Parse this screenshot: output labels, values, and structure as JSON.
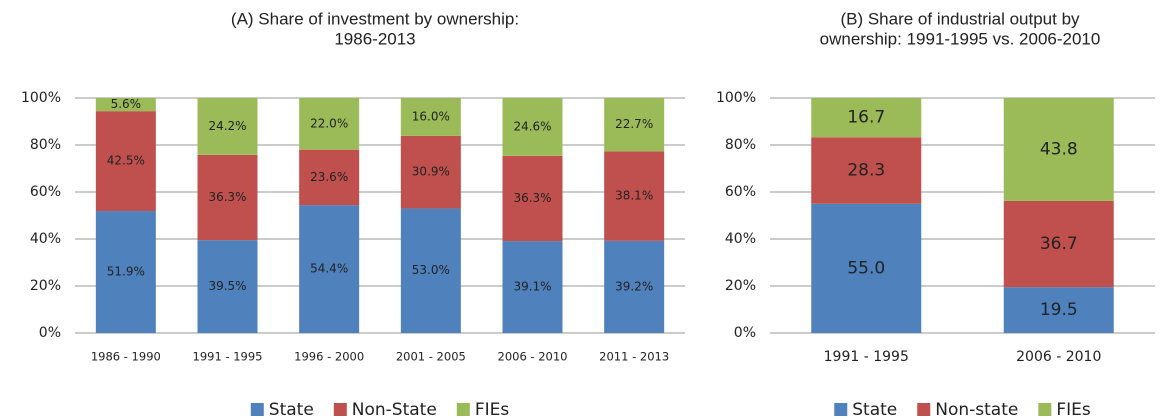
{
  "chart_data": [
    {
      "type": "bar",
      "stacked": true,
      "title": [
        "(A) Share of investment by ownership:",
        "1986-2013"
      ],
      "categories": [
        "1986 - 1990",
        "1991 - 1995",
        "1996 - 2000",
        "2001 - 2005",
        "2006 - 2010",
        "2011 - 2013"
      ],
      "series": [
        {
          "name": "State",
          "color": "#4f81bd",
          "values": [
            51.9,
            39.5,
            54.4,
            53.0,
            39.1,
            39.2
          ],
          "value_labels": [
            "51.9%",
            "39.5%",
            "54.4%",
            "53.0%",
            "39.1%",
            "39.2%"
          ]
        },
        {
          "name": "Non-State",
          "color": "#c0504d",
          "values": [
            42.5,
            36.3,
            23.6,
            30.9,
            36.3,
            38.1
          ],
          "value_labels": [
            "42.5%",
            "36.3%",
            "23.6%",
            "30.9%",
            "36.3%",
            "38.1%"
          ]
        },
        {
          "name": "FIEs",
          "color": "#9bbb59",
          "values": [
            5.6,
            24.2,
            22.0,
            16.0,
            24.6,
            22.7
          ],
          "value_labels": [
            "5.6%",
            "24.2%",
            "22.0%",
            "16.0%",
            "24.6%",
            "22.7%"
          ]
        }
      ],
      "ylim": [
        0,
        100
      ],
      "yticks": [
        {
          "value": 0,
          "label": "0%"
        },
        {
          "value": 20,
          "label": "20%"
        },
        {
          "value": 40,
          "label": "40%"
        },
        {
          "value": 60,
          "label": "60%"
        },
        {
          "value": 80,
          "label": "80%"
        },
        {
          "value": 100,
          "label": "100%"
        }
      ],
      "grid": true,
      "legend": "bottom"
    },
    {
      "type": "bar",
      "stacked": true,
      "title": [
        "(B) Share of industrial output by",
        "ownership: 1991-1995 vs. 2006-2010"
      ],
      "categories": [
        "1991 - 1995",
        "2006 - 2010"
      ],
      "series": [
        {
          "name": "State",
          "color": "#4f81bd",
          "values": [
            55.0,
            19.5
          ],
          "value_labels": [
            "55.0",
            "19.5"
          ]
        },
        {
          "name": "Non-state",
          "color": "#c0504d",
          "values": [
            28.3,
            36.7
          ],
          "value_labels": [
            "28.3",
            "36.7"
          ]
        },
        {
          "name": "FIEs",
          "color": "#9bbb59",
          "values": [
            16.7,
            43.8
          ],
          "value_labels": [
            "16.7",
            "43.8"
          ]
        }
      ],
      "ylim": [
        0,
        100
      ],
      "yticks": [
        {
          "value": 0,
          "label": "0%"
        },
        {
          "value": 20,
          "label": "20%"
        },
        {
          "value": 40,
          "label": "40%"
        },
        {
          "value": 60,
          "label": "60%"
        },
        {
          "value": 80,
          "label": "80%"
        },
        {
          "value": 100,
          "label": "100%"
        }
      ],
      "grid": true,
      "legend": "bottom"
    }
  ]
}
